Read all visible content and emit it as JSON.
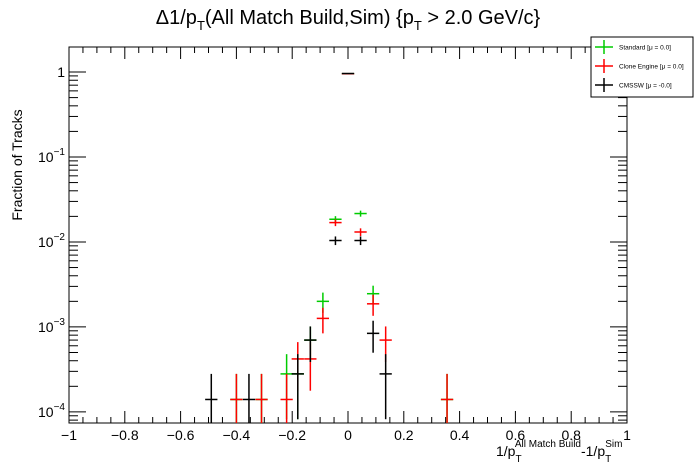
{
  "chart_data": {
    "type": "scatter",
    "title_parts": {
      "prefix": "Δ1/p",
      "sub1": "T",
      "middle": "(All Match Build,Sim) {p",
      "sub2": "T",
      "suffix": " > 2.0 GeV/c}"
    },
    "xlabel_parts": {
      "a": "1/p",
      "a_sub": "T",
      "a_sup": "All Match Build",
      "b": "-1/p",
      "b_sub": "T",
      "b_sup": "Sim"
    },
    "ylabel": "Fraction of Tracks",
    "xlim": [
      -1,
      1
    ],
    "ylim": [
      7.4e-05,
      1.97
    ],
    "yscale": "log",
    "grid": false,
    "legend_position": "top-right",
    "x_ticks": [
      -1,
      -0.8,
      -0.6,
      -0.4,
      -0.2,
      0,
      0.2,
      0.4,
      0.6,
      0.8,
      1
    ],
    "x_tick_labels": [
      "−1",
      "−0.8",
      "−0.6",
      "−0.4",
      "−0.2",
      "0",
      "0.2",
      "0.4",
      "0.6",
      "0.8",
      "1"
    ],
    "y_ticks": [
      {
        "value": 1,
        "base": "1",
        "exp": ""
      },
      {
        "value": 0.1,
        "base": "10",
        "exp": "−1"
      },
      {
        "value": 0.01,
        "base": "10",
        "exp": "−2"
      },
      {
        "value": 0.001,
        "base": "10",
        "exp": "−3"
      },
      {
        "value": 0.0001,
        "base": "10",
        "exp": "−4"
      }
    ],
    "bin_half_width": 0.022,
    "series": [
      {
        "name": "Standard",
        "legend_label": "Standard  [μ =  0.0]",
        "color": "#00cc00",
        "points": [
          {
            "x": -0.4,
            "y": 0.00014,
            "n": 1
          },
          {
            "x": -0.31,
            "y": 0.00014,
            "n": 1
          },
          {
            "x": -0.22,
            "y": 0.00028,
            "n": 2
          },
          {
            "x": -0.18,
            "y": 0.00028,
            "n": 2
          },
          {
            "x": -0.135,
            "y": 0.0007,
            "n": 5
          },
          {
            "x": -0.09,
            "y": 0.002,
            "n": 14
          },
          {
            "x": -0.045,
            "y": 0.0185,
            "n": 130
          },
          {
            "x": 0,
            "y": 0.955,
            "n": 6700
          },
          {
            "x": 0.045,
            "y": 0.0216,
            "n": 150
          },
          {
            "x": 0.09,
            "y": 0.00246,
            "n": 17
          },
          {
            "x": 0.355,
            "y": 0.00014,
            "n": 1
          }
        ]
      },
      {
        "name": "Clone Engine",
        "legend_label": "Clone Engine  [μ =  0.0]",
        "color": "#ff0000",
        "points": [
          {
            "x": -0.4,
            "y": 0.00014,
            "n": 1
          },
          {
            "x": -0.31,
            "y": 0.00014,
            "n": 1
          },
          {
            "x": -0.22,
            "y": 0.00014,
            "n": 1
          },
          {
            "x": -0.18,
            "y": 0.00042,
            "n": 3
          },
          {
            "x": -0.135,
            "y": 0.00042,
            "n": 3
          },
          {
            "x": -0.09,
            "y": 0.00126,
            "n": 9
          },
          {
            "x": -0.045,
            "y": 0.0169,
            "n": 120
          },
          {
            "x": 0,
            "y": 0.955,
            "n": 6700
          },
          {
            "x": 0.045,
            "y": 0.0131,
            "n": 92
          },
          {
            "x": 0.09,
            "y": 0.00187,
            "n": 13
          },
          {
            "x": 0.135,
            "y": 0.0007,
            "n": 5
          },
          {
            "x": 0.355,
            "y": 0.00014,
            "n": 1
          }
        ]
      },
      {
        "name": "CMSSW",
        "legend_label": "CMSSW  [μ = -0.0]",
        "color": "#000000",
        "points": [
          {
            "x": -0.49,
            "y": 0.00014,
            "n": 1
          },
          {
            "x": -0.355,
            "y": 0.00014,
            "n": 1
          },
          {
            "x": -0.18,
            "y": 0.00028,
            "n": 2
          },
          {
            "x": -0.135,
            "y": 0.0007,
            "n": 5
          },
          {
            "x": -0.045,
            "y": 0.0104,
            "n": 74
          },
          {
            "x": 0,
            "y": 0.96,
            "n": 6700
          },
          {
            "x": 0.045,
            "y": 0.0104,
            "n": 74
          },
          {
            "x": 0.09,
            "y": 0.00084,
            "n": 6
          },
          {
            "x": 0.135,
            "y": 0.00028,
            "n": 2
          }
        ]
      }
    ]
  }
}
